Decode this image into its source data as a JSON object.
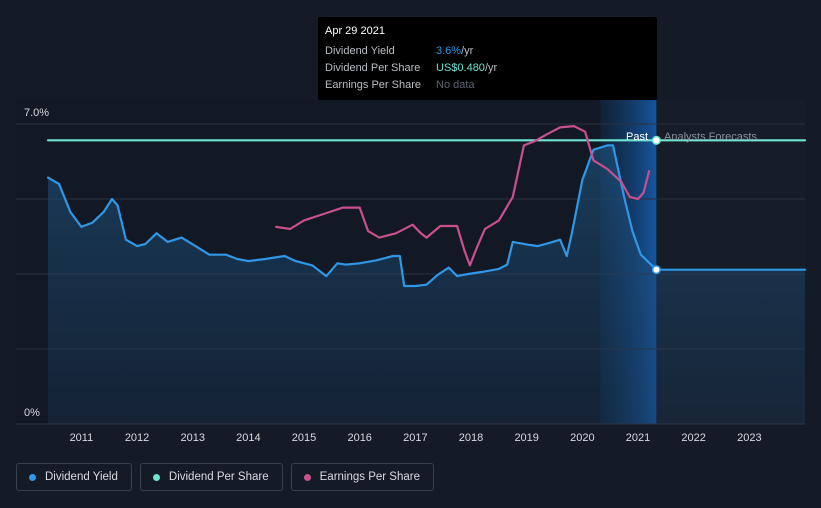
{
  "tooltip": {
    "date": "Apr 29 2021",
    "rows": [
      {
        "label": "Dividend Yield",
        "value": "3.6%",
        "unit": " /yr"
      },
      {
        "label": "Dividend Per Share",
        "value": "US$0.480",
        "unit": " /yr"
      },
      {
        "label": "Earnings Per Share",
        "value": "No data",
        "unit": ""
      }
    ]
  },
  "legend": [
    {
      "label": "Dividend Yield",
      "color": "#2f97e6"
    },
    {
      "label": "Dividend Per Share",
      "color": "#6fe3d2"
    },
    {
      "label": "Earnings Per Share",
      "color": "#c94f8f"
    }
  ],
  "chart_data": {
    "type": "line",
    "y_labels": [
      "7.0%",
      "0%"
    ],
    "ylim": [
      0,
      7.0
    ],
    "xlim": [
      2010.4,
      2024.0
    ],
    "x_ticks": [
      "2011",
      "2012",
      "2013",
      "2014",
      "2015",
      "2016",
      "2017",
      "2018",
      "2019",
      "2020",
      "2021",
      "2022",
      "2023"
    ],
    "past_label": "Past",
    "forecast_label": "Analysts Forecasts",
    "cursor_x": 2021.33,
    "series": [
      {
        "name": "Dividend Yield",
        "color": "#2f97e6",
        "area": true,
        "points": [
          [
            2010.4,
            5.75
          ],
          [
            2010.6,
            5.6
          ],
          [
            2010.8,
            4.95
          ],
          [
            2011.0,
            4.6
          ],
          [
            2011.2,
            4.7
          ],
          [
            2011.4,
            4.95
          ],
          [
            2011.55,
            5.25
          ],
          [
            2011.65,
            5.1
          ],
          [
            2011.8,
            4.3
          ],
          [
            2012.0,
            4.15
          ],
          [
            2012.15,
            4.2
          ],
          [
            2012.35,
            4.45
          ],
          [
            2012.55,
            4.25
          ],
          [
            2012.8,
            4.35
          ],
          [
            2013.05,
            4.15
          ],
          [
            2013.3,
            3.95
          ],
          [
            2013.6,
            3.95
          ],
          [
            2013.8,
            3.85
          ],
          [
            2014.0,
            3.8
          ],
          [
            2014.3,
            3.85
          ],
          [
            2014.65,
            3.92
          ],
          [
            2014.85,
            3.8
          ],
          [
            2015.15,
            3.7
          ],
          [
            2015.4,
            3.45
          ],
          [
            2015.6,
            3.75
          ],
          [
            2015.75,
            3.72
          ],
          [
            2016.0,
            3.75
          ],
          [
            2016.3,
            3.82
          ],
          [
            2016.6,
            3.92
          ],
          [
            2016.72,
            3.92
          ],
          [
            2016.8,
            3.22
          ],
          [
            2017.0,
            3.22
          ],
          [
            2017.2,
            3.25
          ],
          [
            2017.4,
            3.48
          ],
          [
            2017.6,
            3.65
          ],
          [
            2017.75,
            3.45
          ],
          [
            2017.95,
            3.5
          ],
          [
            2018.2,
            3.55
          ],
          [
            2018.5,
            3.62
          ],
          [
            2018.65,
            3.72
          ],
          [
            2018.75,
            4.25
          ],
          [
            2019.05,
            4.18
          ],
          [
            2019.2,
            4.15
          ],
          [
            2019.4,
            4.22
          ],
          [
            2019.6,
            4.3
          ],
          [
            2019.72,
            3.92
          ],
          [
            2019.82,
            4.5
          ],
          [
            2020.0,
            5.7
          ],
          [
            2020.2,
            6.4
          ],
          [
            2020.45,
            6.5
          ],
          [
            2020.55,
            6.5
          ],
          [
            2020.75,
            5.3
          ],
          [
            2020.9,
            4.5
          ],
          [
            2021.05,
            3.95
          ],
          [
            2021.33,
            3.6
          ],
          [
            2024.0,
            3.6
          ]
        ]
      },
      {
        "name": "Dividend Per Share",
        "color": "#6fe3d2",
        "area": false,
        "points": [
          [
            2010.4,
            6.62
          ],
          [
            2024.0,
            6.62
          ]
        ]
      },
      {
        "name": "Earnings Per Share",
        "color": "#c94f8f",
        "area": false,
        "points": [
          [
            2014.5,
            4.6
          ],
          [
            2014.75,
            4.55
          ],
          [
            2015.0,
            4.75
          ],
          [
            2015.35,
            4.9
          ],
          [
            2015.7,
            5.05
          ],
          [
            2016.0,
            5.05
          ],
          [
            2016.15,
            4.5
          ],
          [
            2016.35,
            4.35
          ],
          [
            2016.65,
            4.45
          ],
          [
            2016.95,
            4.65
          ],
          [
            2017.1,
            4.45
          ],
          [
            2017.2,
            4.35
          ],
          [
            2017.45,
            4.62
          ],
          [
            2017.75,
            4.62
          ],
          [
            2017.88,
            4.05
          ],
          [
            2017.98,
            3.7
          ],
          [
            2018.1,
            4.1
          ],
          [
            2018.25,
            4.55
          ],
          [
            2018.5,
            4.75
          ],
          [
            2018.75,
            5.3
          ],
          [
            2018.95,
            6.5
          ],
          [
            2019.15,
            6.6
          ],
          [
            2019.35,
            6.75
          ],
          [
            2019.6,
            6.92
          ],
          [
            2019.85,
            6.95
          ],
          [
            2020.05,
            6.82
          ],
          [
            2020.2,
            6.15
          ],
          [
            2020.45,
            5.95
          ],
          [
            2020.7,
            5.65
          ],
          [
            2020.85,
            5.3
          ],
          [
            2021.0,
            5.25
          ],
          [
            2021.1,
            5.4
          ],
          [
            2021.2,
            5.9
          ]
        ]
      }
    ]
  }
}
